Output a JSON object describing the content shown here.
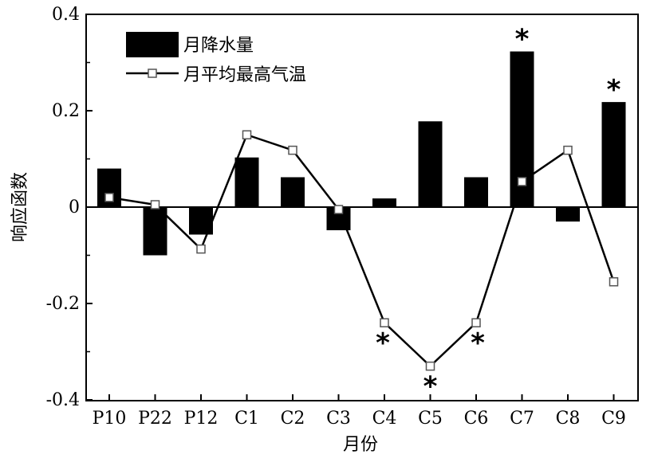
{
  "chart_data": {
    "type": "bar",
    "xlabel": "月份",
    "ylabel": "响应函数",
    "ylim": [
      -0.4,
      0.4
    ],
    "yticks": [
      -0.4,
      -0.2,
      0,
      0.2,
      0.4
    ],
    "ytick_labels": [
      "-0.4",
      "-0.2",
      "0",
      "0.2",
      "0.4"
    ],
    "categories": [
      "P10",
      "P22",
      "P12",
      "C1",
      "C2",
      "C3",
      "C4",
      "C5",
      "C6",
      "C7",
      "C8",
      "C9"
    ],
    "grid": false,
    "legend_position": "top-left",
    "series": [
      {
        "name": "月降水量",
        "type": "bar",
        "color": "#000000",
        "values": [
          0.08,
          -0.1,
          -0.057,
          0.103,
          0.062,
          -0.048,
          0.018,
          0.178,
          0.062,
          0.323,
          -0.03,
          0.218
        ],
        "significant": [
          false,
          false,
          false,
          false,
          false,
          false,
          false,
          false,
          false,
          true,
          false,
          true
        ]
      },
      {
        "name": "月平均最高气温",
        "type": "line",
        "color": "#000000",
        "marker": "open-square",
        "values": [
          0.02,
          0.005,
          -0.087,
          0.15,
          0.118,
          -0.005,
          -0.24,
          -0.33,
          -0.24,
          0.053,
          0.118,
          -0.155
        ],
        "significant": [
          false,
          false,
          false,
          false,
          false,
          false,
          true,
          true,
          true,
          false,
          false,
          false
        ]
      }
    ],
    "significance_marker": "*"
  }
}
